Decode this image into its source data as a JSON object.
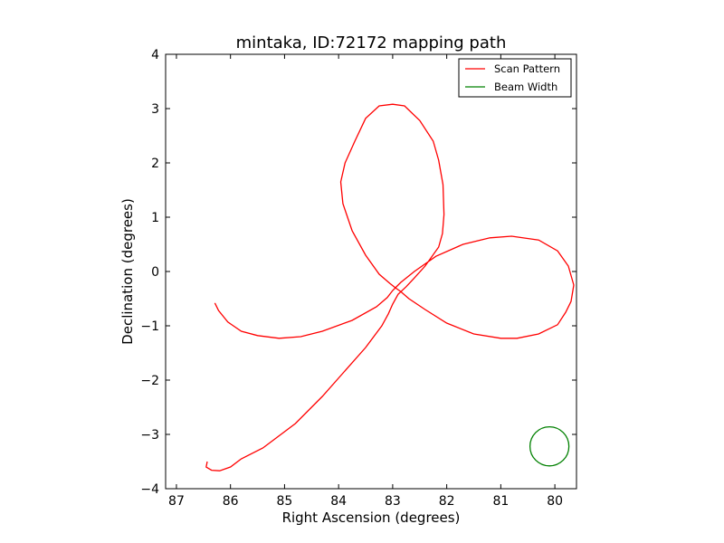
{
  "chart_data": {
    "type": "line",
    "title": "mintaka, ID:72172 mapping path",
    "xlabel": "Right Ascension (degrees)",
    "ylabel": "Declination (degrees)",
    "xlim": [
      87.2,
      79.6
    ],
    "ylim": [
      -4,
      4
    ],
    "x_inverted": true,
    "xticks": [
      87,
      86,
      85,
      84,
      83,
      82,
      81,
      80
    ],
    "yticks": [
      -4,
      -3,
      -2,
      -1,
      0,
      1,
      2,
      3,
      4
    ],
    "xtick_labels": [
      "87",
      "86",
      "85",
      "84",
      "83",
      "82",
      "81",
      "80"
    ],
    "ytick_labels": [
      "−4",
      "−3",
      "−2",
      "−1",
      "0",
      "1",
      "2",
      "3",
      "4"
    ],
    "grid": false,
    "legend_position": "top-right",
    "series": [
      {
        "name": "Scan Pattern",
        "color": "#ff0000",
        "x": [
          86.29,
          86.22,
          86.05,
          85.8,
          85.5,
          85.1,
          84.7,
          84.3,
          83.75,
          83.3,
          83.1,
          83.0,
          82.95,
          82.85,
          82.6,
          82.2,
          81.7,
          81.2,
          80.8,
          80.3,
          79.95,
          79.75,
          79.65,
          79.7,
          79.8,
          79.95,
          80.3,
          80.7,
          81.0,
          81.5,
          82.0,
          82.4,
          82.7,
          82.85,
          82.95,
          83.05,
          83.25,
          83.5,
          83.75,
          83.92,
          83.96,
          83.88,
          83.7,
          83.5,
          83.25,
          83.0,
          82.78,
          82.5,
          82.25,
          82.15,
          82.07,
          82.05,
          82.08,
          82.15,
          82.4,
          82.6,
          82.75,
          82.9,
          83.0,
          83.08,
          83.2,
          83.5,
          83.9,
          84.3,
          84.8,
          85.4,
          85.8,
          86.0,
          86.2,
          86.35,
          86.45,
          86.43
        ],
        "y": [
          -0.58,
          -0.72,
          -0.93,
          -1.1,
          -1.18,
          -1.23,
          -1.2,
          -1.1,
          -0.9,
          -0.65,
          -0.48,
          -0.35,
          -0.3,
          -0.2,
          0.0,
          0.28,
          0.5,
          0.62,
          0.65,
          0.58,
          0.38,
          0.1,
          -0.25,
          -0.55,
          -0.75,
          -0.98,
          -1.15,
          -1.23,
          -1.23,
          -1.15,
          -0.95,
          -0.7,
          -0.5,
          -0.37,
          -0.3,
          -0.22,
          -0.05,
          0.3,
          0.75,
          1.25,
          1.65,
          2.0,
          2.4,
          2.82,
          3.05,
          3.08,
          3.05,
          2.78,
          2.4,
          2.05,
          1.6,
          1.05,
          0.7,
          0.45,
          0.1,
          -0.12,
          -0.28,
          -0.42,
          -0.6,
          -0.78,
          -1.0,
          -1.4,
          -1.85,
          -2.3,
          -2.8,
          -3.25,
          -3.45,
          -3.6,
          -3.67,
          -3.66,
          -3.6,
          -3.5
        ]
      },
      {
        "name": "Beam Width",
        "color": "#008000",
        "shape": "circle",
        "center": [
          80.1,
          -3.22
        ],
        "radius_deg": 0.36
      }
    ]
  }
}
